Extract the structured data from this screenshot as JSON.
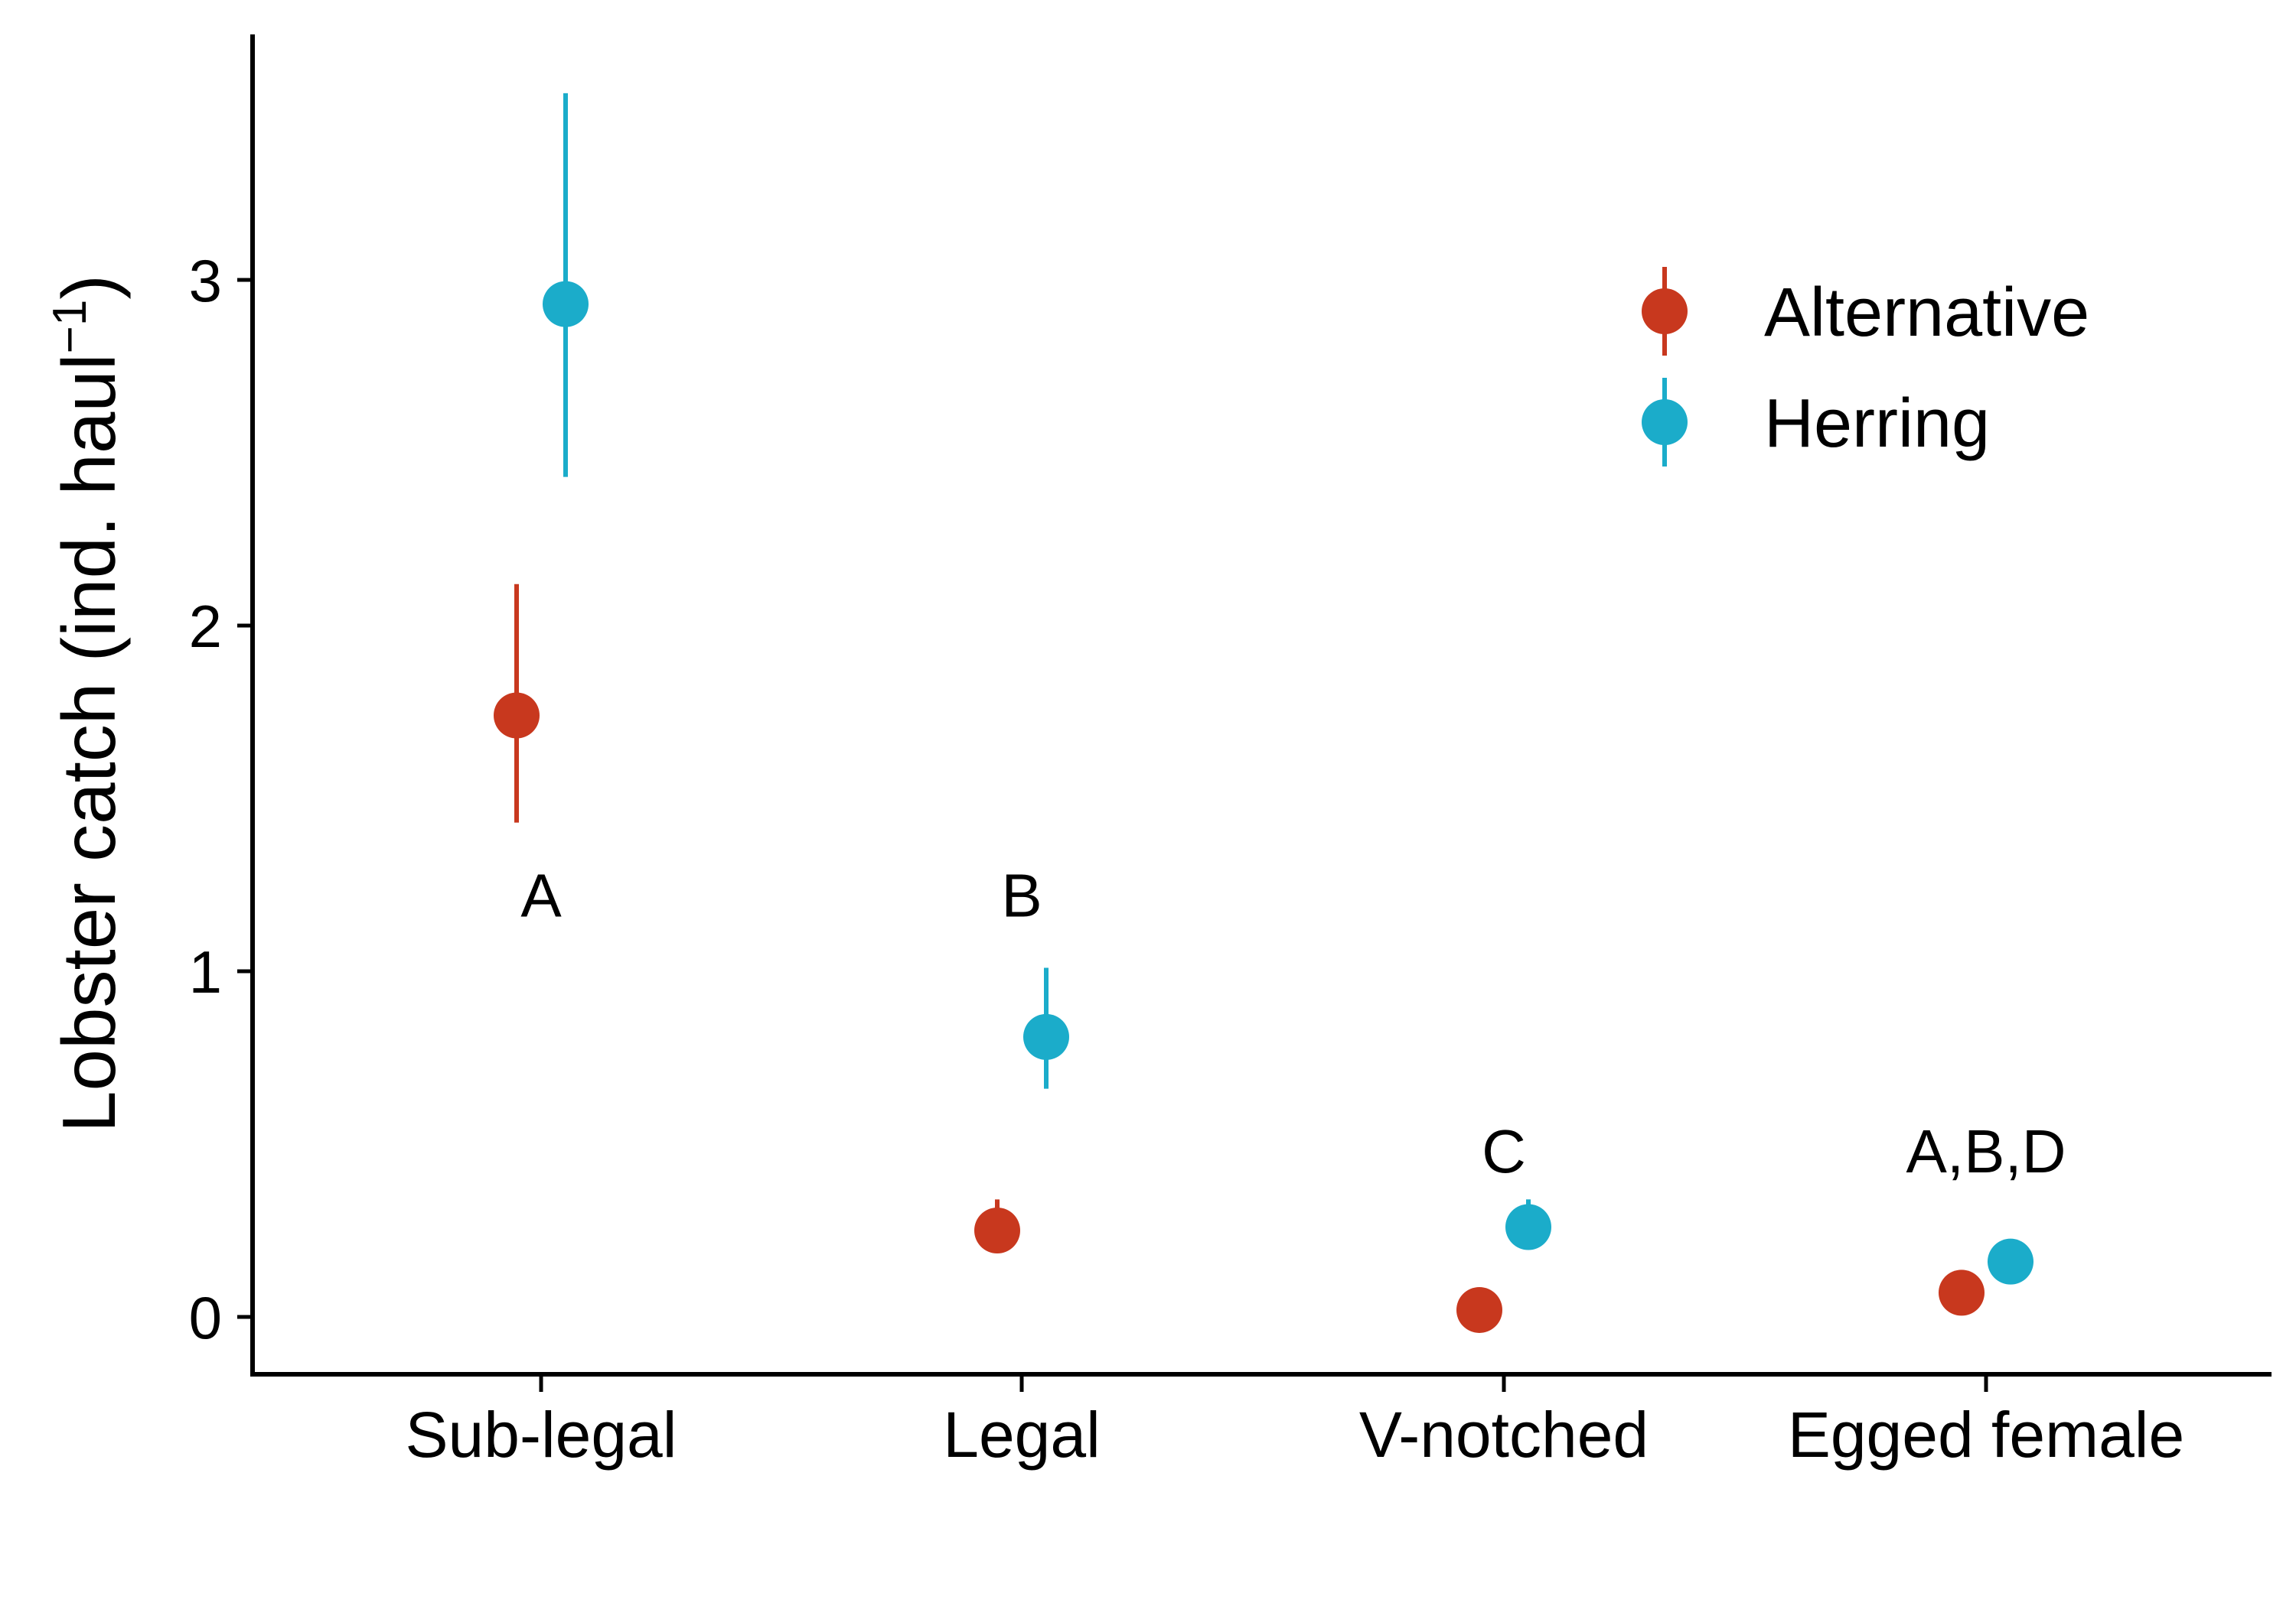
{
  "chart_data": {
    "type": "scatter",
    "ylabel": "Lobster catch (ind. haul",
    "ylabel_sup": "−1",
    "ylabel_close": ")",
    "categories": [
      "Sub-legal",
      "Legal",
      "V-notched",
      "Egged female"
    ],
    "y_ticks": [
      0,
      1,
      2,
      3
    ],
    "ylim": [
      -0.17,
      3.7
    ],
    "grid": false,
    "legend_position": "top-right",
    "series": [
      {
        "name": "Alternative",
        "color": "#C8381E",
        "values": [
          1.74,
          0.25,
          0.02,
          0.07
        ],
        "lower": [
          1.43,
          0.21,
          0.02,
          0.07
        ],
        "upper": [
          2.12,
          0.34,
          0.02,
          0.07
        ]
      },
      {
        "name": "Herring",
        "color": "#1BACCA",
        "values": [
          2.93,
          0.81,
          0.26,
          0.16
        ],
        "lower": [
          2.43,
          0.66,
          0.26,
          0.16
        ],
        "upper": [
          3.54,
          1.01,
          0.34,
          0.16
        ]
      }
    ],
    "annotations": [
      {
        "category": "Sub-legal",
        "text": "A",
        "y": 1.22
      },
      {
        "category": "Legal",
        "text": "B",
        "y": 1.22
      },
      {
        "category": "V-notched",
        "text": "C",
        "y": 0.48
      },
      {
        "category": "Egged female",
        "text": "A,B,D",
        "y": 0.48
      }
    ]
  }
}
